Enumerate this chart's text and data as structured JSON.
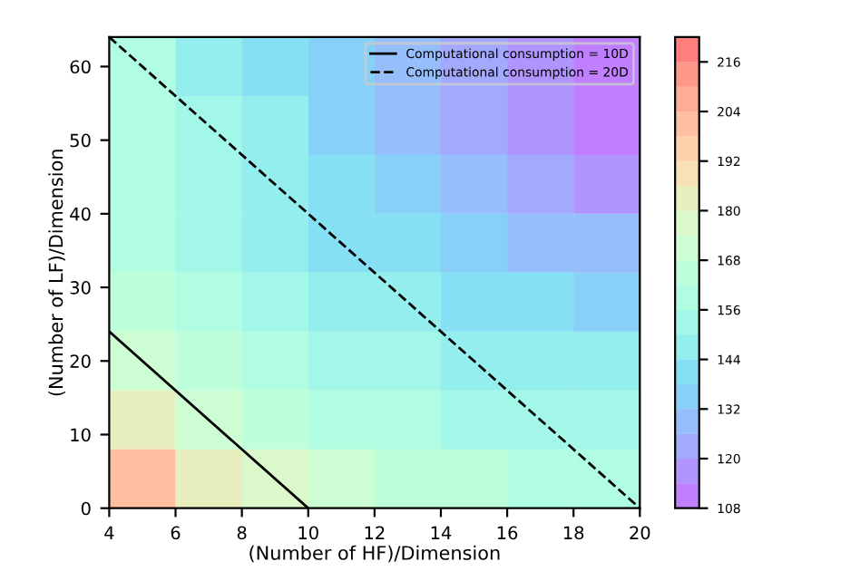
{
  "chart_data": {
    "type": "heatmap",
    "xlabel": "(Number of HF)/Dimension",
    "ylabel": "(Number of LF)/Dimension",
    "x": [
      5,
      7,
      9,
      11,
      13,
      15,
      17,
      19
    ],
    "y": [
      60,
      52,
      44,
      36,
      28,
      20,
      12,
      4
    ],
    "cells": [
      [
        157,
        149,
        142,
        135,
        128,
        122,
        116,
        111
      ],
      [
        158,
        150,
        144,
        136,
        130,
        124,
        118,
        113
      ],
      [
        159,
        151,
        145,
        139,
        134,
        129,
        123,
        118
      ],
      [
        160,
        153,
        148,
        142,
        139,
        135,
        131,
        127
      ],
      [
        165,
        158,
        152,
        147,
        144,
        142,
        139,
        137
      ],
      [
        172,
        165,
        158,
        153,
        150,
        148,
        146,
        144
      ],
      [
        182,
        173,
        166,
        160,
        157,
        155,
        153,
        152
      ],
      [
        199,
        185,
        175,
        168,
        165,
        163,
        161,
        160
      ]
    ],
    "clim": [
      108,
      222
    ],
    "cticks": [
      108,
      120,
      132,
      144,
      156,
      168,
      180,
      192,
      204,
      216
    ],
    "xlim": [
      4,
      20
    ],
    "ylim": [
      0,
      64
    ],
    "xticks": [
      4,
      6,
      8,
      10,
      12,
      14,
      16,
      18,
      20
    ],
    "yticks": [
      0,
      10,
      20,
      30,
      40,
      50,
      60
    ],
    "series": [
      {
        "name": "Computational consumption = 10D",
        "type": "line",
        "color": "#000000",
        "line_style": "solid",
        "x": [
          4,
          10
        ],
        "values": [
          24,
          0
        ]
      },
      {
        "name": "Computational consumption = 20D",
        "type": "line",
        "color": "#000000",
        "line_style": "dashed",
        "x": [
          4,
          20
        ],
        "values": [
          64,
          0
        ]
      }
    ],
    "legend": "top right"
  }
}
